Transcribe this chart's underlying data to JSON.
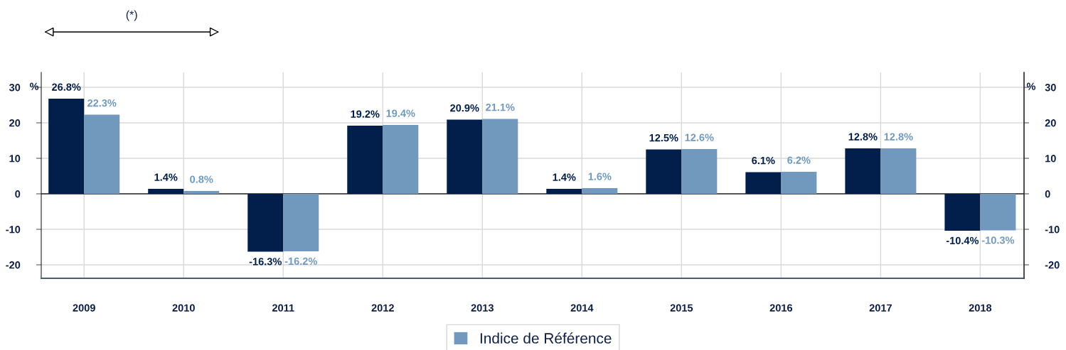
{
  "chart_data": {
    "type": "bar",
    "categories": [
      "2009",
      "2010",
      "2011",
      "2012",
      "2013",
      "2014",
      "2015",
      "2016",
      "2017",
      "2018"
    ],
    "series": [
      {
        "color": "#021e4a",
        "values": [
          26.8,
          1.4,
          -16.3,
          19.2,
          20.9,
          1.4,
          12.5,
          6.1,
          12.8,
          -10.4
        ],
        "value_labels": [
          "26.8%",
          "1.4%",
          "-16.3%",
          "19.2%",
          "20.9%",
          "1.4%",
          "12.5%",
          "6.1%",
          "12.8%",
          "-10.4%"
        ]
      },
      {
        "name": "Indice de Référence",
        "color": "#7199be",
        "values": [
          22.3,
          0.8,
          -16.2,
          19.4,
          21.1,
          1.6,
          12.6,
          6.2,
          12.8,
          -10.3
        ],
        "value_labels": [
          "22.3%",
          "0.8%",
          "-16.2%",
          "19.4%",
          "21.1%",
          "1.6%",
          "12.6%",
          "6.2%",
          "12.8%",
          "-10.3%"
        ]
      }
    ],
    "ylim": [
      -23.8,
      34.2
    ],
    "yticks": [
      -20,
      -10,
      0,
      10,
      20,
      30
    ],
    "ylabel": "%",
    "y2lim": [
      -23.8,
      34.2
    ],
    "y2ticks": [
      -20,
      -10,
      0,
      10,
      20,
      30
    ],
    "y2label": "%",
    "annotations": [
      "(*)"
    ],
    "grid": true,
    "legend": "bottom"
  }
}
